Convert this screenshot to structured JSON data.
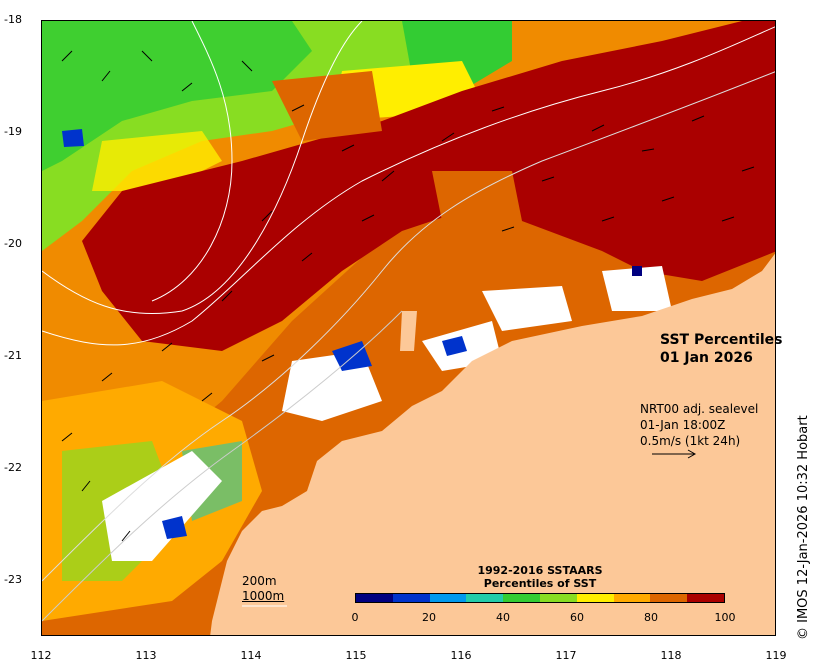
{
  "map": {
    "title_line1": "SST Percentiles",
    "title_line2": "01 Jan 2026",
    "vector_info": {
      "line1": "NRT00 adj. sealevel",
      "line2": "01-Jan 18:00Z",
      "line3": "0.5m/s (1kt 24h)"
    },
    "contours": {
      "label1": "200m",
      "label2": "1000m"
    },
    "colorbar": {
      "title_line1": "1992-2016 SSTAARS",
      "title_line2": "Percentiles of SST",
      "colors": [
        "#000080",
        "#0033cc",
        "#0099ee",
        "#22ccaa",
        "#33cc33",
        "#88dd22",
        "#ffee00",
        "#ffaa00",
        "#dd6600",
        "#aa0000"
      ],
      "ticks": [
        "0",
        "20",
        "40",
        "60",
        "80",
        "100"
      ]
    },
    "credit": "© IMOS 12-Jan-2026 10:32 Hobart",
    "land_color": "#fcc898",
    "lat_ticks": [
      "-18",
      "-19",
      "-20",
      "-21",
      "-22",
      "-23"
    ],
    "lon_ticks": [
      "112",
      "113",
      "114",
      "115",
      "116",
      "117",
      "118",
      "119"
    ]
  }
}
